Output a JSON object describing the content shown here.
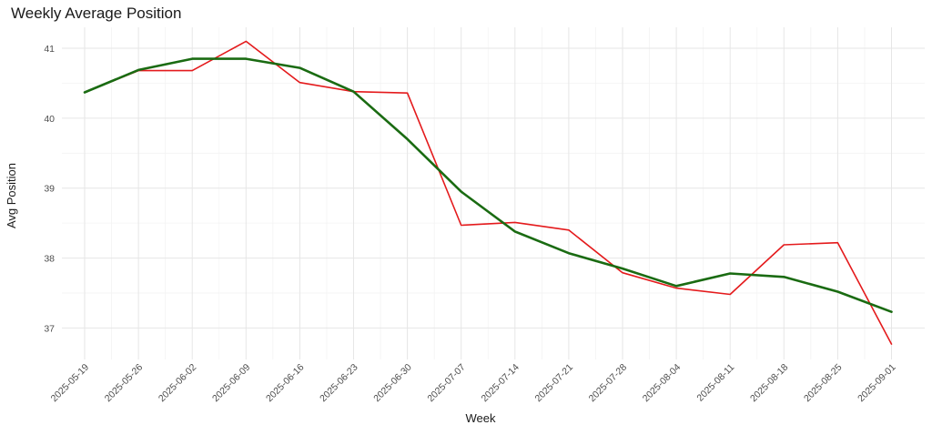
{
  "chart_data": {
    "type": "line",
    "title": "Weekly Average Position",
    "xlabel": "Week",
    "ylabel": "Avg Position",
    "x": [
      "2025-05-19",
      "2025-05-26",
      "2025-06-02",
      "2025-06-09",
      "2025-06-16",
      "2025-06-23",
      "2025-06-30",
      "2025-07-07",
      "2025-07-14",
      "2025-07-21",
      "2025-07-28",
      "2025-08-04",
      "2025-08-11",
      "2025-08-18",
      "2025-08-25",
      "2025-09-01"
    ],
    "ylim": [
      36.55,
      41.3
    ],
    "yticks": [
      37,
      38,
      39,
      40,
      41
    ],
    "grid": true,
    "legend": "none",
    "series": [
      {
        "color": "#e41a1c",
        "values": [
          40.37,
          40.68,
          40.68,
          41.1,
          40.51,
          40.38,
          40.36,
          38.47,
          38.51,
          38.4,
          37.79,
          37.57,
          37.48,
          38.19,
          38.22,
          36.77
        ]
      },
      {
        "color": "#1a6b12",
        "values": [
          40.37,
          40.69,
          40.85,
          40.85,
          40.72,
          40.38,
          39.7,
          38.95,
          38.38,
          38.07,
          37.85,
          37.6,
          37.78,
          37.73,
          37.52,
          37.23
        ]
      }
    ]
  }
}
